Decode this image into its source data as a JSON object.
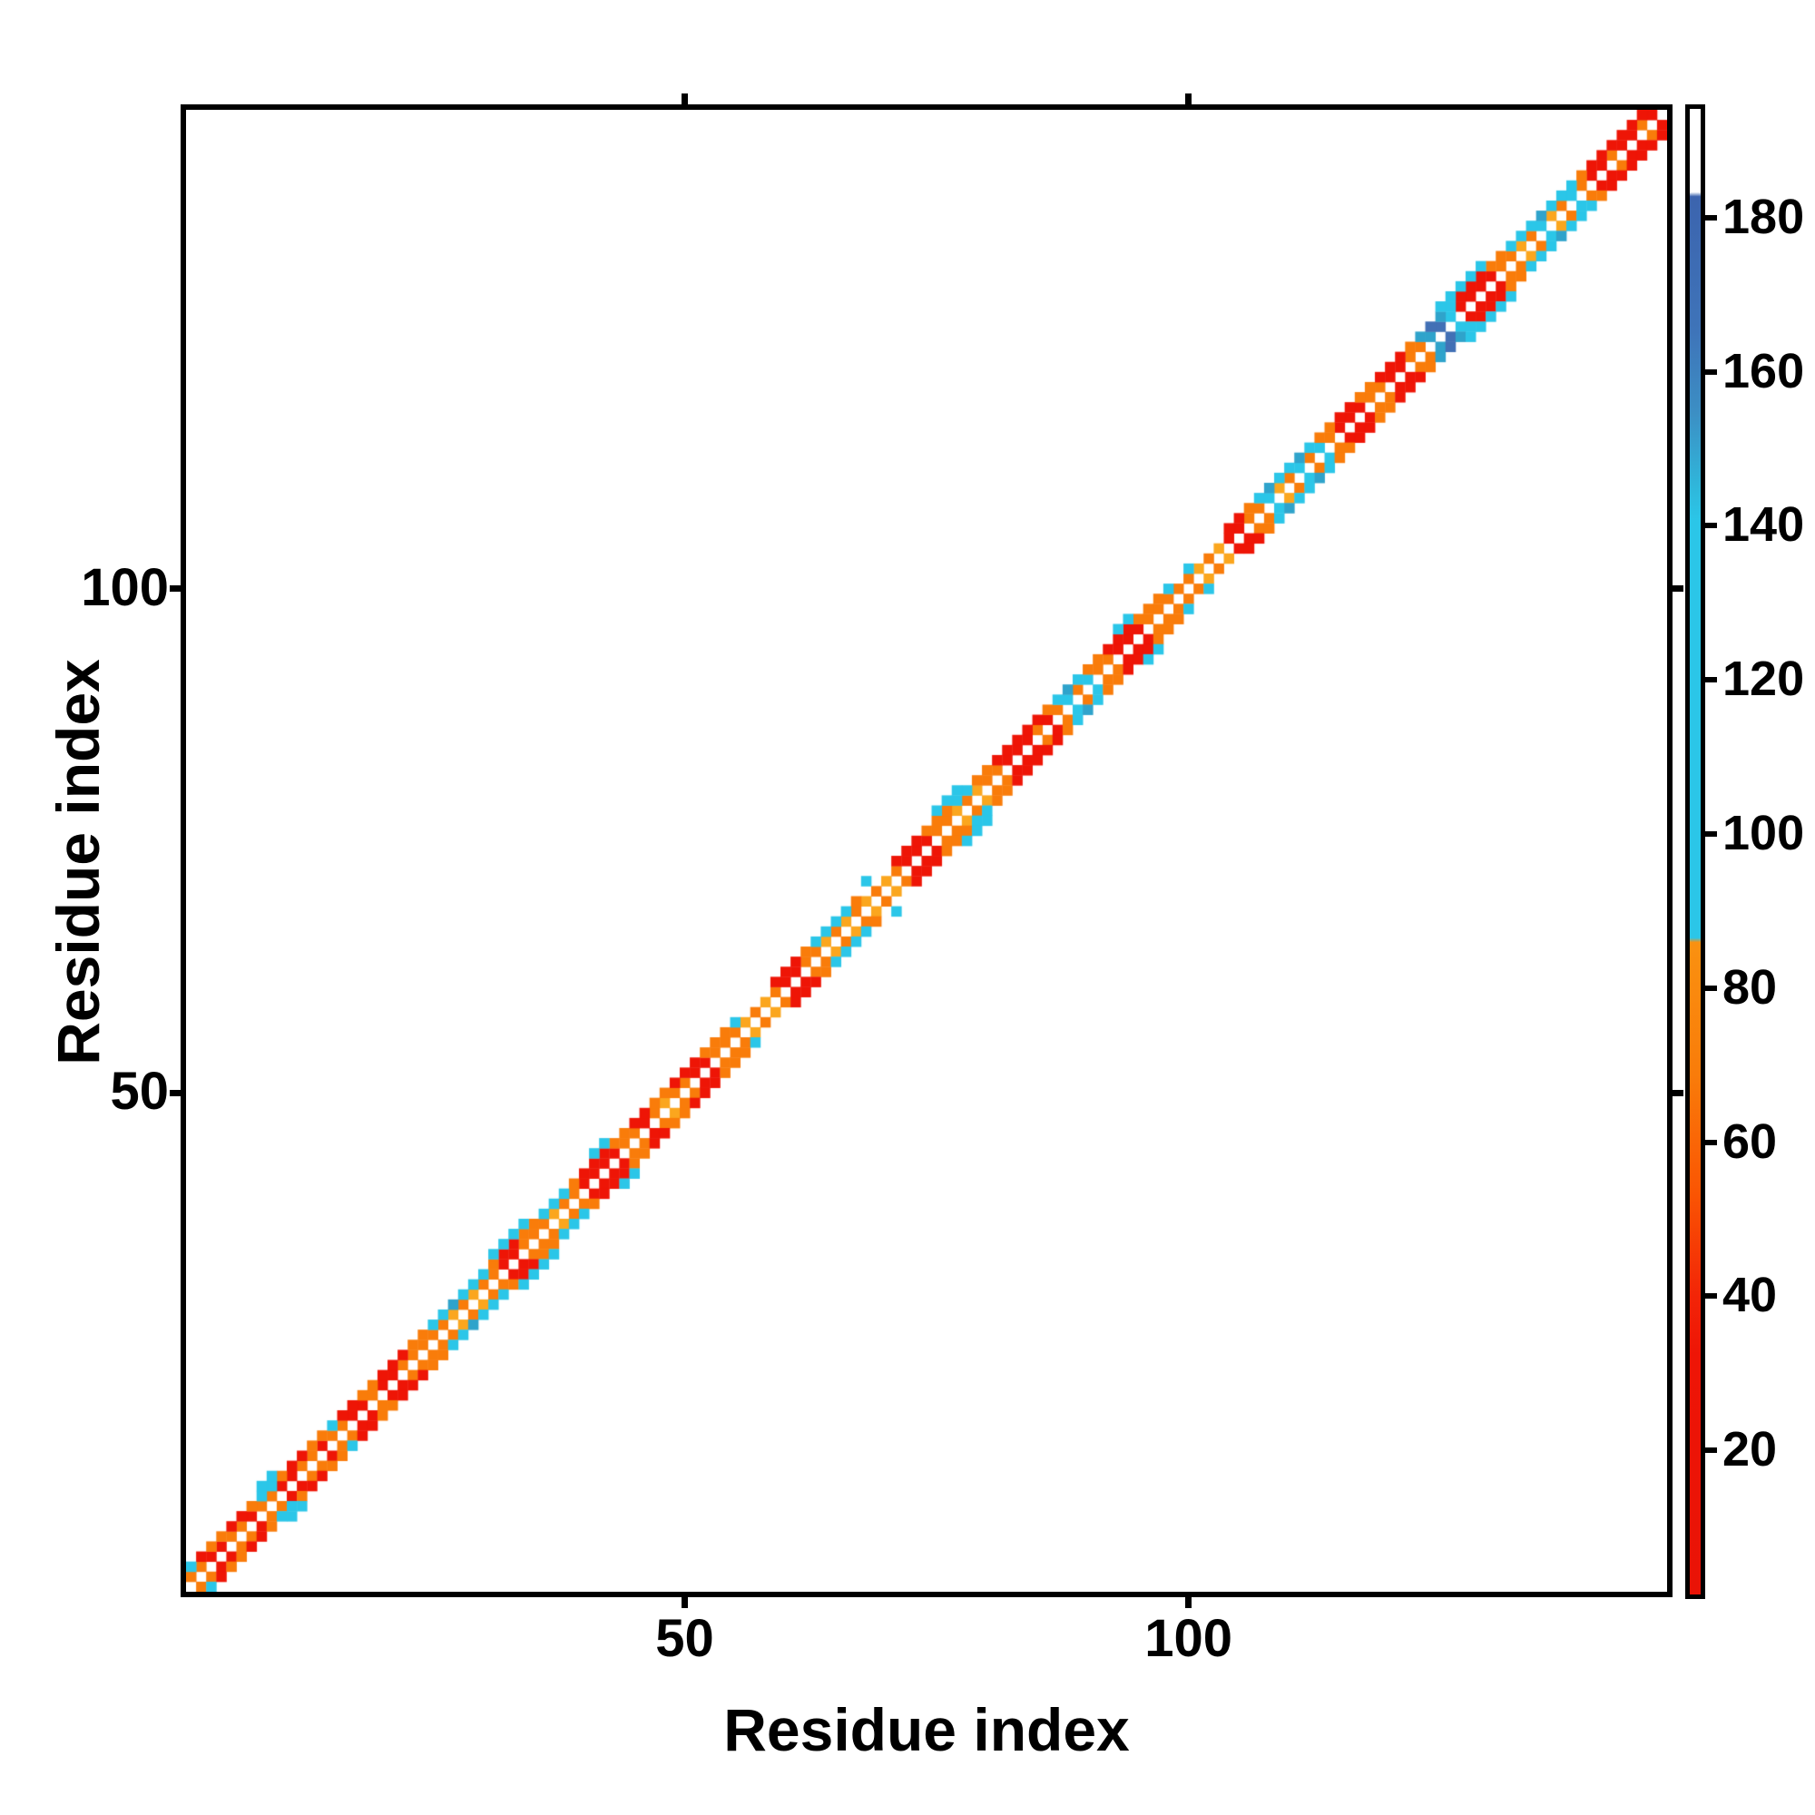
{
  "figure": {
    "background_color": "#ffffff",
    "frame_color": "#000000",
    "x_axis": {
      "label": "Residue index",
      "ticks": [
        {
          "value": 50,
          "label": "50"
        },
        {
          "value": 100,
          "label": "100"
        }
      ]
    },
    "y_axis": {
      "label": "Residue index",
      "ticks": [
        {
          "value": 50,
          "label": "50"
        },
        {
          "value": 100,
          "label": "100"
        }
      ]
    }
  },
  "chart_data": {
    "type": "heatmap",
    "title": "",
    "xlabel": "Residue index",
    "ylabel": "Residue index",
    "grid": false,
    "n_residues": 147,
    "axis_range": [
      1,
      147
    ],
    "diagonal_is_white": true,
    "description": "Symmetric residue-residue contact map. Colored cells lie in a narrow band along the main diagonal at sequence offsets 1-3; the diagonal itself is white. Cell color classes per residue index i are encoded in band.off1 (pair i,i+1), band.off2 (pair i,i+2), band.off3 (pair i,i+3); '.' means no contact (white). The matrix is mirrored across the diagonal.",
    "palette": {
      "R": "#ee1506",
      "O": "#f97c0a",
      "o": "#fba61e",
      "C": "#2bc6e8",
      "T": "#2fa3cb",
      "B": "#4270b5"
    },
    "band": {
      "off1": "OORROOROORROOROORRORROOOOOoOoOORROOOoOORRRROOROoOORROOOoOoORROOoOoOoOoORRROOoOoOORRROROCOCOORRROOOOOoOoRROOCoOCOCORRROORROOTBCRRRROOoOCoOCORRORROR",
      "off2": "CROORROCCORROOCRROORRROOCCTCCCORROOCCCORRROORROORRROOOC...RRROCCCCO...RRROOOCCOORRRRROCTCOORRROOOC.C...RROCTCCTCOORROORRROTBTCRRROOCCCTCCCORRRRRR",
      "off3": ".......CC.....................CCCC......CC.........................C......CCC...............CC..............................CCCCC...............CCCCCC......."
    },
    "colorbar": {
      "side": "right",
      "value_min": 1.3,
      "value_max": 194.1,
      "tick_values": [
        180,
        160,
        140,
        120,
        100,
        80,
        60,
        40,
        20
      ],
      "tick_labels": [
        "180",
        "160",
        "140",
        "120",
        "100",
        "80",
        "60",
        "40",
        "20"
      ],
      "gradient_stops_top_to_bottom": [
        {
          "f": 0.0,
          "c": "#ffffff"
        },
        {
          "f": 0.056,
          "c": "#ffffff"
        },
        {
          "f": 0.059,
          "c": "#3c64ae"
        },
        {
          "f": 0.15,
          "c": "#3e74b9"
        },
        {
          "f": 0.205,
          "c": "#3c8fc4"
        },
        {
          "f": 0.255,
          "c": "#2fb7db"
        },
        {
          "f": 0.278,
          "c": "#2bc6e8"
        },
        {
          "f": 0.558,
          "c": "#2bc6e8"
        },
        {
          "f": 0.561,
          "c": "#fa9110"
        },
        {
          "f": 0.65,
          "c": "#f97c0a"
        },
        {
          "f": 0.73,
          "c": "#fa5503"
        },
        {
          "f": 0.8,
          "c": "#f22407"
        },
        {
          "f": 0.838,
          "c": "#ee1506"
        },
        {
          "f": 1.0,
          "c": "#e91306"
        }
      ]
    }
  }
}
